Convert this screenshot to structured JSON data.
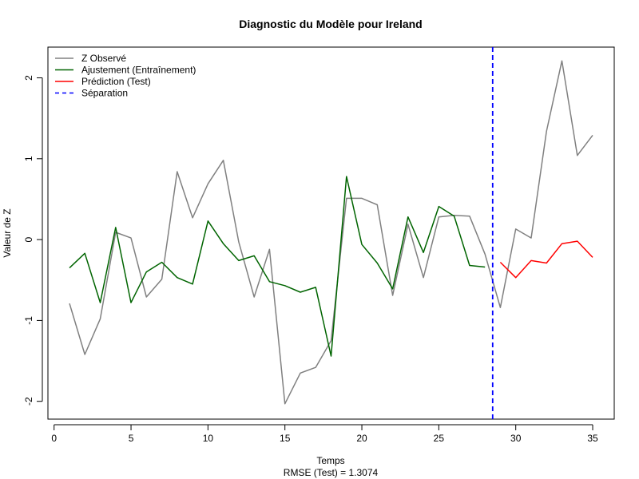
{
  "chart_data": {
    "type": "line",
    "title": "Diagnostic du Modèle pour Ireland",
    "xlabel": "Temps",
    "ylabel": "Valeur de Z",
    "subtitle": "RMSE (Test) = 1.3074",
    "xlim": [
      -0.4,
      36.4
    ],
    "ylim": [
      -2.22,
      2.38
    ],
    "xticks": [
      0,
      5,
      10,
      15,
      20,
      25,
      30,
      35
    ],
    "yticks": [
      -2,
      -1,
      0,
      1,
      2
    ],
    "legend_position": "top-left",
    "grid": false,
    "series": [
      {
        "name": "Z Observé",
        "color": "#808080",
        "style": "solid",
        "x": [
          1,
          2,
          3,
          4,
          5,
          6,
          7,
          8,
          9,
          10,
          11,
          12,
          13,
          14,
          15,
          16,
          17,
          18,
          19,
          20,
          21,
          22,
          23,
          24,
          25,
          26,
          27,
          28,
          29,
          30,
          31,
          32,
          33,
          34,
          35
        ],
        "values": [
          -0.79,
          -1.42,
          -0.98,
          0.09,
          0.02,
          -0.71,
          -0.49,
          0.84,
          0.27,
          0.69,
          0.98,
          -0.03,
          -0.71,
          -0.12,
          -2.03,
          -1.65,
          -1.58,
          -1.25,
          0.51,
          0.51,
          0.43,
          -0.69,
          0.19,
          -0.47,
          0.28,
          0.3,
          0.29,
          -0.18,
          -0.84,
          0.13,
          0.02,
          1.34,
          2.21,
          1.04,
          1.29
        ]
      },
      {
        "name": "Ajustement (Entraînement)",
        "color": "#006400",
        "style": "solid",
        "x": [
          1,
          2,
          3,
          4,
          5,
          6,
          7,
          8,
          9,
          10,
          11,
          12,
          13,
          14,
          15,
          16,
          17,
          18,
          19,
          20,
          21,
          22,
          23,
          24,
          25,
          26,
          27,
          28
        ],
        "values": [
          -0.35,
          -0.17,
          -0.78,
          0.15,
          -0.78,
          -0.4,
          -0.28,
          -0.47,
          -0.55,
          0.23,
          -0.05,
          -0.26,
          -0.2,
          -0.52,
          -0.57,
          -0.65,
          -0.59,
          -1.44,
          0.78,
          -0.06,
          -0.29,
          -0.61,
          0.28,
          -0.16,
          0.41,
          0.29,
          -0.32,
          -0.34
        ]
      },
      {
        "name": "Prédiction (Test)",
        "color": "#ff0000",
        "style": "solid",
        "x": [
          29,
          30,
          31,
          32,
          33,
          34,
          35
        ],
        "values": [
          -0.28,
          -0.47,
          -0.26,
          -0.29,
          -0.05,
          -0.02,
          -0.22
        ]
      }
    ],
    "separation": {
      "name": "Séparation",
      "color": "#0000ff",
      "style": "dashed",
      "x": 28.5
    }
  }
}
